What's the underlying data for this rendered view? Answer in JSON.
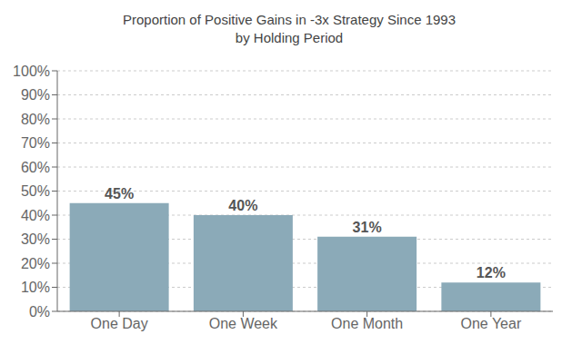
{
  "chart_data": {
    "type": "bar",
    "title": "Proportion of Positive Gains in -3x Strategy Since 1993\nby Holding Period",
    "categories": [
      "One Day",
      "One Week",
      "One Month",
      "One Year"
    ],
    "values": [
      45,
      40,
      31,
      12
    ],
    "value_labels": [
      "45%",
      "40%",
      "31%",
      "12%"
    ],
    "data_labels": true,
    "color": "#8baab8",
    "ylim": [
      0,
      100
    ],
    "yticks": [
      {
        "value": 0,
        "label": "0%"
      },
      {
        "value": 10,
        "label": "10%"
      },
      {
        "value": 20,
        "label": "20%"
      },
      {
        "value": 30,
        "label": "30%"
      },
      {
        "value": 40,
        "label": "40%"
      },
      {
        "value": 50,
        "label": "50%"
      },
      {
        "value": 60,
        "label": "60%"
      },
      {
        "value": 70,
        "label": "70%"
      },
      {
        "value": 80,
        "label": "80%"
      },
      {
        "value": 90,
        "label": "90%"
      },
      {
        "value": 100,
        "label": "100%"
      }
    ],
    "grid": true
  }
}
